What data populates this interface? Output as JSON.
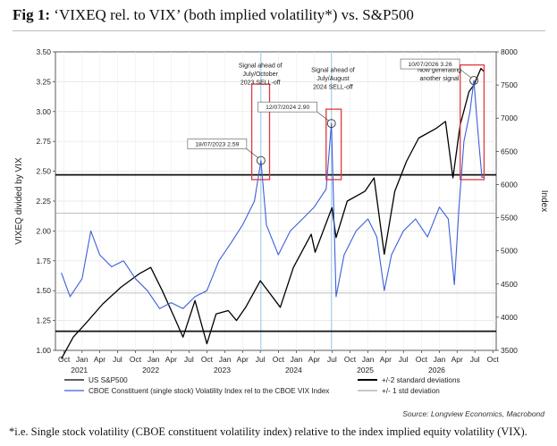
{
  "figure": {
    "label": "Fig 1:",
    "title": "‘VIXEQ rel. to VIX’ (both implied volatility*) vs. S&P500",
    "footnote": "*i.e. Single stock volatility (CBOE constituent volatility index) relative to the index implied equity volatility (VIX).",
    "source": "Source: Longview Economics, Macrobond"
  },
  "chart_data": {
    "type": "line",
    "ylabel_left": "VIXEQ divided by VIX",
    "ylabel_right": "Index",
    "ylim_left": [
      1.0,
      3.5
    ],
    "ylim_right": [
      3500,
      8000
    ],
    "yticks_left": [
      "1.00",
      "1.25",
      "1.50",
      "1.75",
      "2.00",
      "2.25",
      "2.50",
      "2.75",
      "3.00",
      "3.25",
      "3.50"
    ],
    "yticks_right": [
      "3500",
      "4000",
      "4500",
      "5000",
      "5500",
      "6000",
      "6500",
      "7000",
      "7500",
      "8000"
    ],
    "x_months": [
      "Oct",
      "Jan",
      "Apr",
      "Jul",
      "Oct",
      "Jan",
      "Apr",
      "Jul",
      "Oct",
      "Jan",
      "Apr",
      "Jul",
      "Oct",
      "Jan",
      "Apr",
      "Jul",
      "Oct",
      "Jan",
      "Apr",
      "Jul",
      "Oct",
      "Jan",
      "Apr",
      "Jul",
      "Oct"
    ],
    "x_years": [
      "2021",
      "2022",
      "2023",
      "2024",
      "2025",
      "2026"
    ],
    "grid": true,
    "reference_lines": {
      "plus2sd": 2.47,
      "minus2sd": 1.16,
      "plus1sd": 2.15,
      "minus1sd": 1.48
    },
    "series": [
      {
        "name": "US S&P500",
        "color": "#000000",
        "axis": "right",
        "points": [
          [
            "2020-10-01",
            3370
          ],
          [
            "2020-12-01",
            3700
          ],
          [
            "2021-02-01",
            3900
          ],
          [
            "2021-05-01",
            4200
          ],
          [
            "2021-08-01",
            4450
          ],
          [
            "2021-11-01",
            4650
          ],
          [
            "2022-01-01",
            4750
          ],
          [
            "2022-03-01",
            4400
          ],
          [
            "2022-05-01",
            4000
          ],
          [
            "2022-06-15",
            3700
          ],
          [
            "2022-08-15",
            4250
          ],
          [
            "2022-10-15",
            3600
          ],
          [
            "2022-12-01",
            4050
          ],
          [
            "2023-02-01",
            4100
          ],
          [
            "2023-03-15",
            3950
          ],
          [
            "2023-05-01",
            4150
          ],
          [
            "2023-07-15",
            4550
          ],
          [
            "2023-10-25",
            4150
          ],
          [
            "2023-12-31",
            4750
          ],
          [
            "2024-03-31",
            5250
          ],
          [
            "2024-04-20",
            4980
          ],
          [
            "2024-07-15",
            5650
          ],
          [
            "2024-08-05",
            5200
          ],
          [
            "2024-10-01",
            5750
          ],
          [
            "2024-12-31",
            5900
          ],
          [
            "2025-02-15",
            6100
          ],
          [
            "2025-04-08",
            4950
          ],
          [
            "2025-06-01",
            5900
          ],
          [
            "2025-07-31",
            6350
          ],
          [
            "2025-10-01",
            6700
          ],
          [
            "2025-12-31",
            6850
          ],
          [
            "2026-02-15",
            6950
          ],
          [
            "2026-03-25",
            6100
          ],
          [
            "2026-05-01",
            6900
          ],
          [
            "2026-06-15",
            7400
          ],
          [
            "2026-07-10",
            7500
          ],
          [
            "2026-08-15",
            7750
          ],
          [
            "2026-09-01",
            7700
          ]
        ]
      },
      {
        "name": "CBOE Constituent (single stock) Volatility Index rel to the CBOE VIX Index",
        "color": "#3d5fd8",
        "axis": "left",
        "points": [
          [
            "2020-10-01",
            1.65
          ],
          [
            "2020-11-15",
            1.45
          ],
          [
            "2021-01-15",
            1.6
          ],
          [
            "2021-03-01",
            2.0
          ],
          [
            "2021-04-15",
            1.8
          ],
          [
            "2021-06-15",
            1.7
          ],
          [
            "2021-08-15",
            1.75
          ],
          [
            "2021-10-15",
            1.6
          ],
          [
            "2021-12-15",
            1.5
          ],
          [
            "2022-02-15",
            1.35
          ],
          [
            "2022-04-15",
            1.4
          ],
          [
            "2022-06-15",
            1.35
          ],
          [
            "2022-08-15",
            1.45
          ],
          [
            "2022-10-15",
            1.5
          ],
          [
            "2022-12-15",
            1.75
          ],
          [
            "2023-02-15",
            1.9
          ],
          [
            "2023-04-15",
            2.05
          ],
          [
            "2023-06-15",
            2.25
          ],
          [
            "2023-07-18",
            2.59
          ],
          [
            "2023-08-15",
            2.05
          ],
          [
            "2023-10-15",
            1.8
          ],
          [
            "2023-12-15",
            2.0
          ],
          [
            "2024-02-15",
            2.1
          ],
          [
            "2024-04-15",
            2.2
          ],
          [
            "2024-06-15",
            2.35
          ],
          [
            "2024-07-12",
            2.9
          ],
          [
            "2024-08-05",
            1.45
          ],
          [
            "2024-09-15",
            1.8
          ],
          [
            "2024-11-15",
            2.0
          ],
          [
            "2025-01-15",
            2.1
          ],
          [
            "2025-03-01",
            1.95
          ],
          [
            "2025-04-08",
            1.5
          ],
          [
            "2025-05-15",
            1.8
          ],
          [
            "2025-07-15",
            2.0
          ],
          [
            "2025-09-15",
            2.1
          ],
          [
            "2025-11-15",
            1.95
          ],
          [
            "2026-01-15",
            2.2
          ],
          [
            "2026-03-01",
            2.1
          ],
          [
            "2026-04-01",
            1.55
          ],
          [
            "2026-04-25",
            2.2
          ],
          [
            "2026-05-20",
            2.75
          ],
          [
            "2026-06-20",
            3.0
          ],
          [
            "2026-07-10",
            3.26
          ],
          [
            "2026-08-01",
            2.8
          ],
          [
            "2026-08-20",
            2.45
          ],
          [
            "2026-09-01",
            2.45
          ]
        ]
      }
    ],
    "highlight_boxes": [
      {
        "from": "2023-06-01",
        "to": "2023-08-31",
        "ymin": 2.43,
        "ymax": 3.23
      },
      {
        "from": "2024-06-15",
        "to": "2024-08-31",
        "ymin": 2.43,
        "ymax": 3.02
      },
      {
        "from": "2026-05-01",
        "to": "2026-08-31",
        "ymin": 2.43,
        "ymax": 3.39
      }
    ],
    "annotations": [
      {
        "text": [
          "Signal ahead of",
          "July/October",
          "2023 SELL-off"
        ],
        "kind": "note",
        "anchor": "2023-07-15",
        "y": 3.37
      },
      {
        "text": [
          "Signal ahead of",
          "July/August",
          "2024 SELL-off"
        ],
        "kind": "note",
        "anchor": "2024-07-20",
        "y": 3.33
      },
      {
        "text": [
          "Now generating",
          "another signal"
        ],
        "kind": "note",
        "anchor": "2026-01-15",
        "y": 3.33
      },
      {
        "text": [
          "18/07/2023 2.59"
        ],
        "kind": "callout",
        "date": "2023-07-18",
        "value": 2.59
      },
      {
        "text": [
          "12/07/2024 2.90"
        ],
        "kind": "callout",
        "date": "2024-07-12",
        "value": 2.9
      },
      {
        "text": [
          "10/07/2026 3.26"
        ],
        "kind": "callout",
        "date": "2026-07-10",
        "value": 3.26
      }
    ],
    "legend": {
      "placement": "bottom",
      "items": [
        {
          "label": "US S&P500",
          "color": "#000000",
          "style": "solid"
        },
        {
          "label": "CBOE Constituent (single stock) Volatility Index rel to the CBOE VIX Index",
          "color": "#3d5fd8",
          "style": "solid"
        },
        {
          "label": "+/-2 standard deviations",
          "color": "#000000",
          "style": "thick"
        },
        {
          "label": "+/- 1 std deviation",
          "color": "#a8a8a8",
          "style": "solid"
        }
      ]
    }
  }
}
